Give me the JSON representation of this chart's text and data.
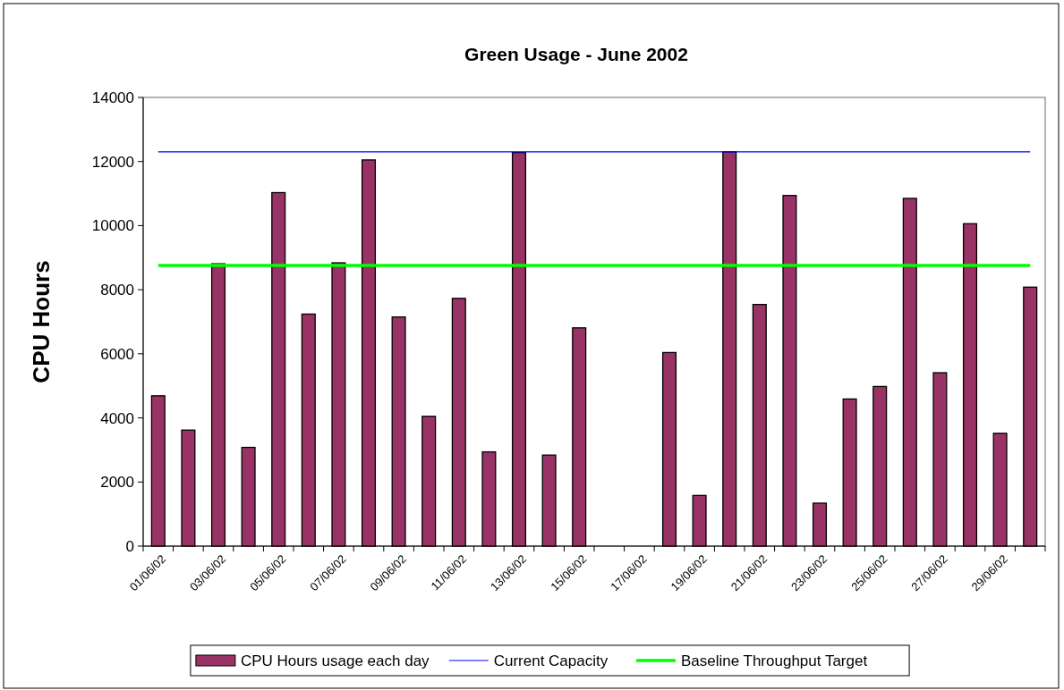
{
  "chart_data": {
    "type": "bar",
    "title": "Green Usage - June 2002",
    "ylabel": "CPU Hours",
    "categories": [
      "01/06/02",
      null,
      "03/06/02",
      null,
      "05/06/02",
      null,
      "07/06/02",
      null,
      "09/06/02",
      null,
      "11/06/02",
      null,
      "13/06/02",
      null,
      "15/06/02",
      null,
      "17/06/02",
      null,
      "19/06/02",
      null,
      "21/06/02",
      null,
      "23/06/02",
      null,
      "25/06/02",
      null,
      "27/06/02",
      null,
      "29/06/02",
      null
    ],
    "series": [
      {
        "name": "CPU Hours usage each day",
        "color": "#993366",
        "values": [
          4690,
          3620,
          8810,
          3080,
          11030,
          7240,
          8840,
          12050,
          7150,
          4050,
          7730,
          2940,
          12280,
          2840,
          6810,
          null,
          null,
          6040,
          1580,
          12300,
          7540,
          10940,
          1340,
          4590,
          4980,
          10850,
          5410,
          10060,
          3520,
          8080
        ]
      }
    ],
    "ref_lines": [
      {
        "axis": "y",
        "value": 12300,
        "label": "Current Capacity",
        "color": "#0000ff"
      },
      {
        "axis": "y",
        "value": 8760,
        "label": "Baseline Throughput Target",
        "color": "#00ff00"
      }
    ],
    "ylim": [
      0,
      14000
    ],
    "yticks": [
      0,
      2000,
      4000,
      6000,
      8000,
      10000,
      12000,
      14000
    ],
    "legend": "bottom"
  }
}
